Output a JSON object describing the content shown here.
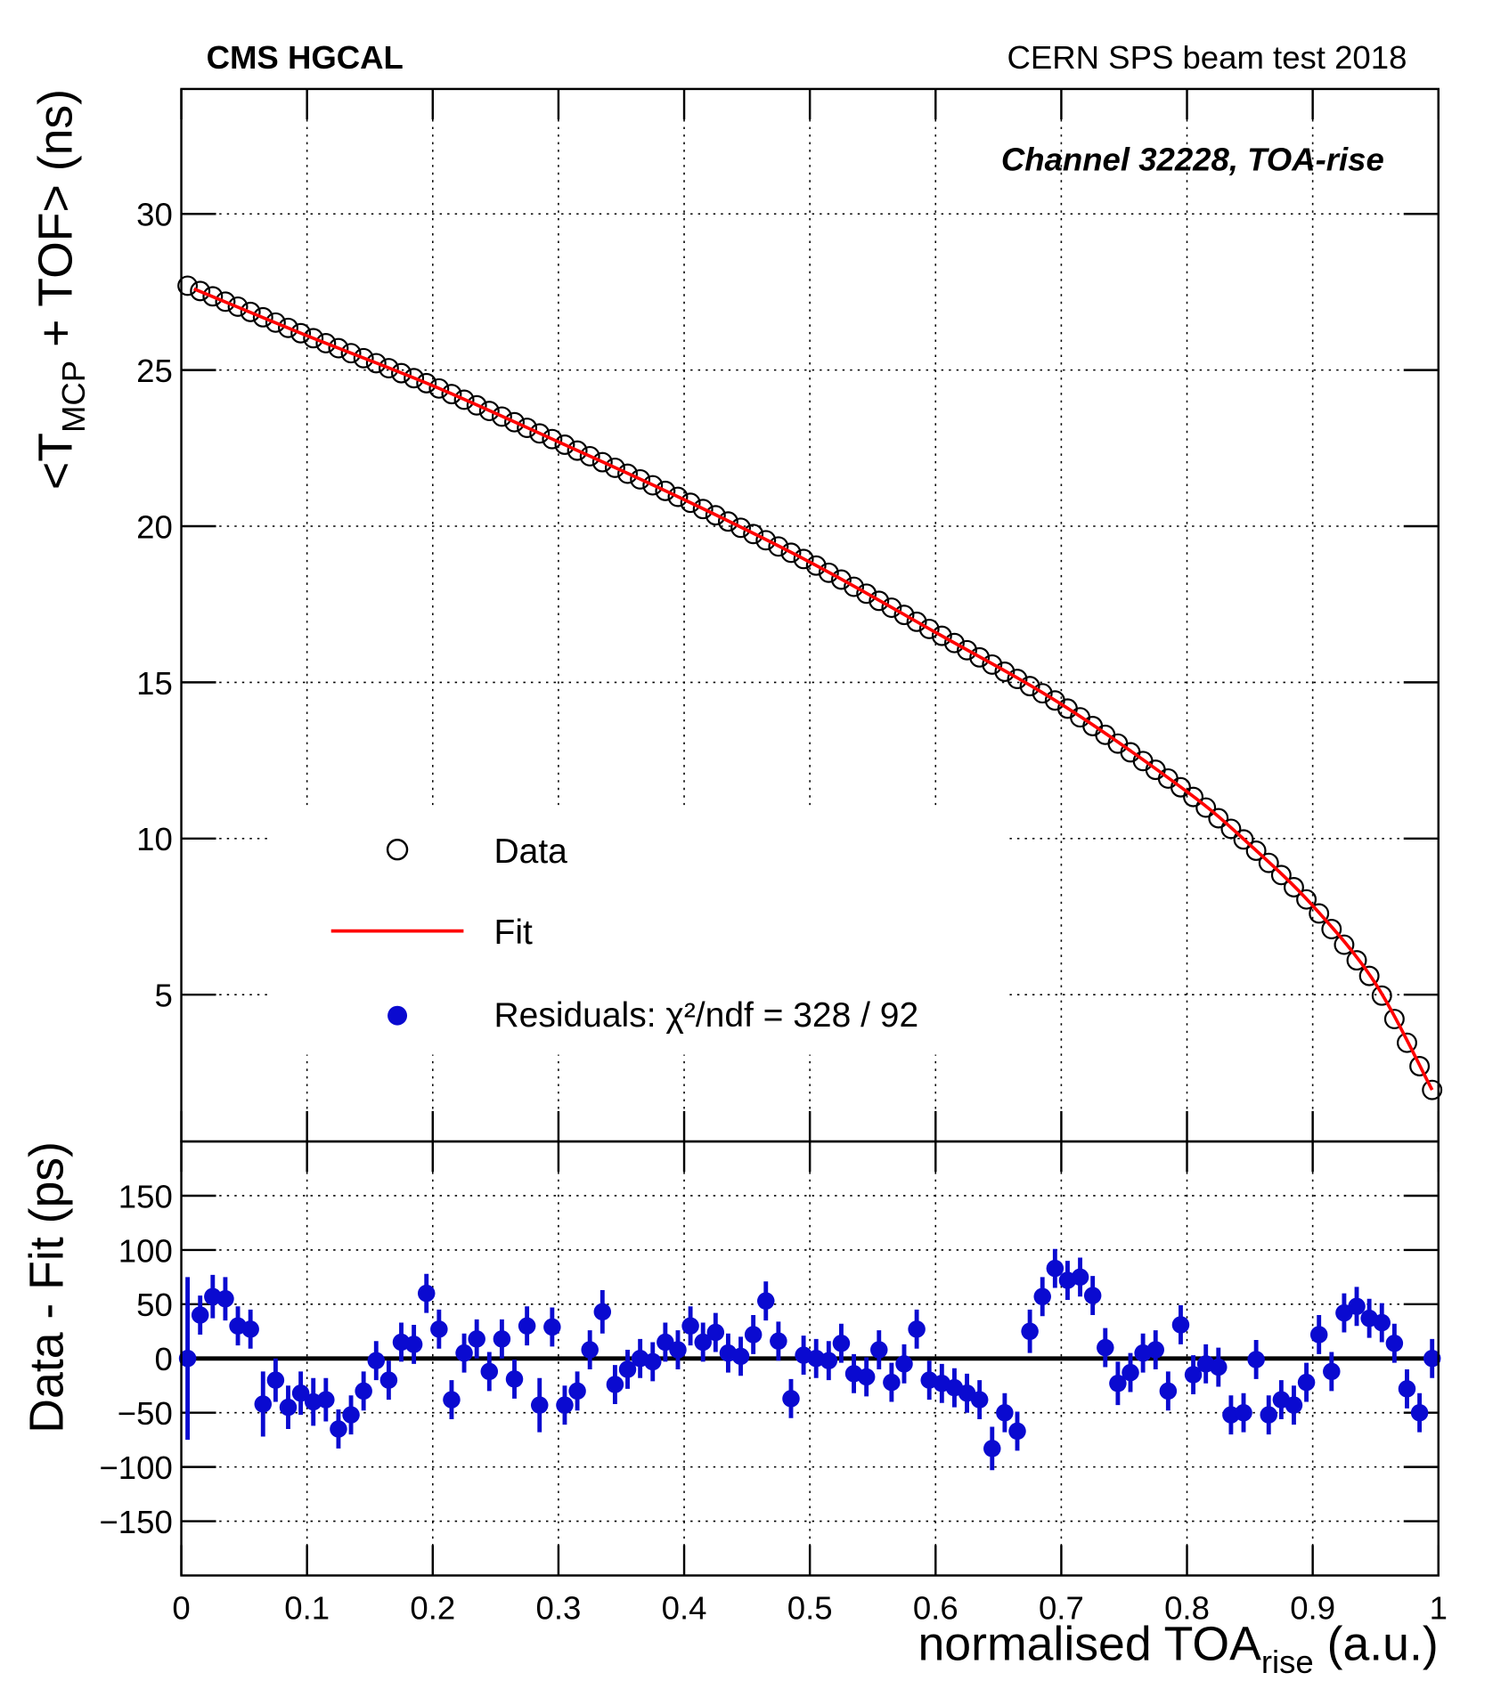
{
  "chart_data": [
    {
      "type": "scatter",
      "title": "CMS HGCAL",
      "subtitle": "CERN SPS beam test 2018",
      "annotation": "Channel 32228, TOA-rise",
      "ylabel": [
        "<T",
        "MCP",
        " + TOF> (ns)"
      ],
      "xlim": [
        0,
        1
      ],
      "xticks": [
        0,
        0.1,
        0.2,
        0.3,
        0.4,
        0.5,
        0.6,
        0.7,
        0.8,
        0.9,
        1
      ],
      "ylim": [
        0.3,
        34
      ],
      "yticks": [
        5,
        10,
        15,
        20,
        25,
        30
      ],
      "grid": true,
      "x": [
        0.005,
        0.015,
        0.025,
        0.035,
        0.045,
        0.055,
        0.065,
        0.075,
        0.085,
        0.095,
        0.105,
        0.115,
        0.125,
        0.135,
        0.145,
        0.155,
        0.165,
        0.175,
        0.185,
        0.195,
        0.205,
        0.215,
        0.225,
        0.235,
        0.245,
        0.255,
        0.265,
        0.275,
        0.285,
        0.295,
        0.305,
        0.315,
        0.325,
        0.335,
        0.345,
        0.355,
        0.365,
        0.375,
        0.385,
        0.395,
        0.405,
        0.415,
        0.425,
        0.435,
        0.445,
        0.455,
        0.465,
        0.475,
        0.485,
        0.495,
        0.505,
        0.515,
        0.525,
        0.535,
        0.545,
        0.555,
        0.565,
        0.575,
        0.585,
        0.595,
        0.605,
        0.615,
        0.625,
        0.635,
        0.645,
        0.655,
        0.665,
        0.675,
        0.685,
        0.695,
        0.705,
        0.715,
        0.725,
        0.735,
        0.745,
        0.755,
        0.765,
        0.775,
        0.785,
        0.795,
        0.805,
        0.815,
        0.825,
        0.835,
        0.845,
        0.855,
        0.865,
        0.875,
        0.885,
        0.895,
        0.905,
        0.915,
        0.925,
        0.935,
        0.945,
        0.955,
        0.965,
        0.975,
        0.985,
        0.995
      ],
      "series": [
        {
          "name": "Data",
          "color": "#000000",
          "values": [
            27.7,
            27.53,
            27.36,
            27.19,
            27.03,
            26.86,
            26.69,
            26.52,
            26.35,
            26.18,
            26.02,
            25.86,
            25.7,
            25.54,
            25.38,
            25.22,
            25.06,
            24.9,
            24.74,
            24.58,
            24.41,
            24.23,
            24.05,
            23.87,
            23.69,
            23.51,
            23.33,
            23.15,
            22.97,
            22.79,
            22.61,
            22.42,
            22.24,
            22.05,
            21.87,
            21.68,
            21.5,
            21.31,
            21.13,
            20.94,
            20.75,
            20.55,
            20.35,
            20.15,
            19.95,
            19.75,
            19.55,
            19.35,
            19.15,
            18.95,
            18.74,
            18.51,
            18.29,
            18.06,
            17.84,
            17.61,
            17.39,
            17.16,
            16.94,
            16.71,
            16.49,
            16.26,
            16.03,
            15.8,
            15.57,
            15.34,
            15.11,
            14.88,
            14.65,
            14.42,
            14.16,
            13.88,
            13.6,
            13.32,
            13.04,
            12.76,
            12.48,
            12.2,
            11.92,
            11.64,
            11.33,
            10.99,
            10.65,
            10.31,
            9.97,
            9.61,
            9.22,
            8.83,
            8.44,
            8.05,
            7.6,
            7.1,
            6.6,
            6.1,
            5.6,
            4.97,
            4.22,
            3.46,
            2.71,
            1.95
          ]
        },
        {
          "name": "Fit",
          "color": "#ff0000",
          "x": [
            0.01,
            0.1,
            0.2,
            0.3,
            0.4,
            0.5,
            0.6,
            0.7,
            0.8,
            0.85,
            0.9,
            0.95,
            0.995
          ],
          "values": [
            27.6,
            26.1,
            24.5,
            22.7,
            20.85,
            18.85,
            16.6,
            14.3,
            11.5,
            9.8,
            7.85,
            5.35,
            1.95
          ]
        }
      ]
    },
    {
      "type": "errorbar",
      "ylabel": "Data - Fit (ps)",
      "xlabel": [
        "normalised TOA",
        "rise",
        " (a.u.)"
      ],
      "ylim": [
        -200,
        200
      ],
      "yticks": [
        {
          "value": -150,
          "label": "−150"
        },
        {
          "value": -100,
          "label": "−100"
        },
        {
          "value": -50,
          "label": "−50"
        },
        0,
        50,
        100,
        150
      ],
      "grid": true,
      "zero_line": true,
      "series": [
        {
          "name": "Residuals: χ²/ndf = 328 / 92",
          "color": "#0a0ad0",
          "values": [
            0,
            40,
            57,
            55,
            30,
            27,
            -42,
            -20,
            -45,
            -32,
            -40,
            -38,
            -65,
            -52,
            -30,
            -2,
            -20,
            15,
            13,
            60,
            27,
            -38,
            5,
            18,
            -12,
            18,
            -19,
            30,
            -43,
            29,
            -43,
            -30,
            8,
            43,
            -24,
            -10,
            0,
            -3,
            15,
            8,
            30,
            15,
            24,
            5,
            2,
            22,
            53,
            16,
            -37,
            3,
            0,
            -2,
            14,
            -14,
            -17,
            8,
            -22,
            -5,
            27,
            -20,
            -23,
            -27,
            -32,
            -38,
            -83,
            -50,
            -67,
            25,
            57,
            83,
            72,
            75,
            58,
            10,
            -23,
            -13,
            5,
            8,
            -30,
            31,
            -15,
            -5,
            -8,
            -52,
            -50,
            -1,
            -52,
            -38,
            -43,
            -22,
            22,
            -12,
            42,
            48,
            37,
            33,
            14,
            -28,
            -50,
            0
          ],
          "errors": [
            75,
            18,
            20,
            20,
            18,
            18,
            30,
            20,
            20,
            20,
            22,
            20,
            18,
            18,
            18,
            18,
            18,
            18,
            18,
            18,
            18,
            18,
            18,
            18,
            18,
            18,
            18,
            18,
            25,
            18,
            18,
            18,
            18,
            20,
            18,
            18,
            18,
            18,
            18,
            18,
            18,
            18,
            18,
            18,
            18,
            18,
            18,
            18,
            18,
            18,
            18,
            18,
            18,
            18,
            18,
            18,
            18,
            18,
            18,
            18,
            18,
            18,
            18,
            18,
            20,
            18,
            18,
            20,
            18,
            18,
            18,
            18,
            18,
            18,
            20,
            18,
            18,
            18,
            18,
            18,
            18,
            18,
            18,
            18,
            18,
            18,
            18,
            18,
            18,
            18,
            18,
            18,
            18,
            18,
            18,
            18,
            18,
            18,
            18,
            18
          ]
        }
      ]
    }
  ]
}
